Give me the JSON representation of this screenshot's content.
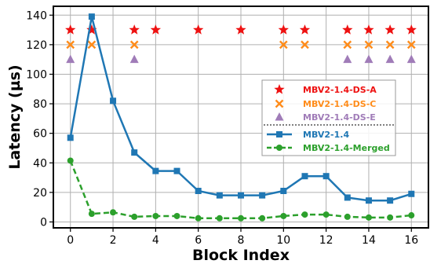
{
  "chart_data": {
    "type": "line",
    "title": "",
    "xlabel": "Block Index",
    "ylabel": "Latency (µs)",
    "xlim": [
      -0.8,
      16.8
    ],
    "ylim": [
      -4,
      146
    ],
    "xticks": [
      0,
      2,
      4,
      6,
      8,
      10,
      12,
      14,
      16
    ],
    "yticks": [
      0,
      20,
      40,
      60,
      80,
      100,
      120,
      140
    ],
    "grid": true,
    "legend_position": "center-right",
    "series": [
      {
        "name": "MBV2-1.4-DS-A",
        "kind": "marker",
        "marker": "star",
        "color": "#ee1111",
        "x": [
          0,
          1,
          3,
          4,
          6,
          8,
          10,
          11,
          13,
          14,
          15,
          16
        ],
        "y": [
          130,
          130,
          130,
          130,
          130,
          130,
          130,
          130,
          130,
          130,
          130,
          130
        ]
      },
      {
        "name": "MBV2-1.4-DS-C",
        "kind": "marker",
        "marker": "x",
        "color": "#ff8c1a",
        "x": [
          0,
          1,
          3,
          10,
          11,
          13,
          14,
          15,
          16
        ],
        "y": [
          120,
          120,
          120,
          120,
          120,
          120,
          120,
          120,
          120
        ]
      },
      {
        "name": "MBV2-1.4-DS-E",
        "kind": "marker",
        "marker": "triangle",
        "color": "#a07cb8",
        "x": [
          0,
          3,
          13,
          14,
          15,
          16
        ],
        "y": [
          110,
          110,
          110,
          110,
          110,
          110
        ]
      },
      {
        "name": "MBV2-1.4",
        "kind": "line",
        "marker": "square",
        "dash": false,
        "color": "#1f77b4",
        "x": [
          0,
          1,
          2,
          3,
          4,
          5,
          6,
          7,
          8,
          9,
          10,
          11,
          12,
          13,
          14,
          15,
          16
        ],
        "y": [
          57,
          139,
          82,
          47,
          34.5,
          34.5,
          21,
          18,
          18,
          18,
          21,
          31,
          31,
          16.5,
          14.5,
          14.5,
          19
        ]
      },
      {
        "name": "MBV2-1.4-Merged",
        "kind": "line",
        "marker": "circle",
        "dash": true,
        "color": "#2ca02c",
        "x": [
          0,
          1,
          2,
          3,
          4,
          5,
          6,
          7,
          8,
          9,
          10,
          11,
          12,
          13,
          14,
          15,
          16
        ],
        "y": [
          41.5,
          5.5,
          6.5,
          3.5,
          4,
          4,
          2.5,
          2.5,
          2.5,
          2.5,
          4,
          5,
          5,
          3.5,
          3,
          3,
          4.5
        ]
      }
    ]
  }
}
